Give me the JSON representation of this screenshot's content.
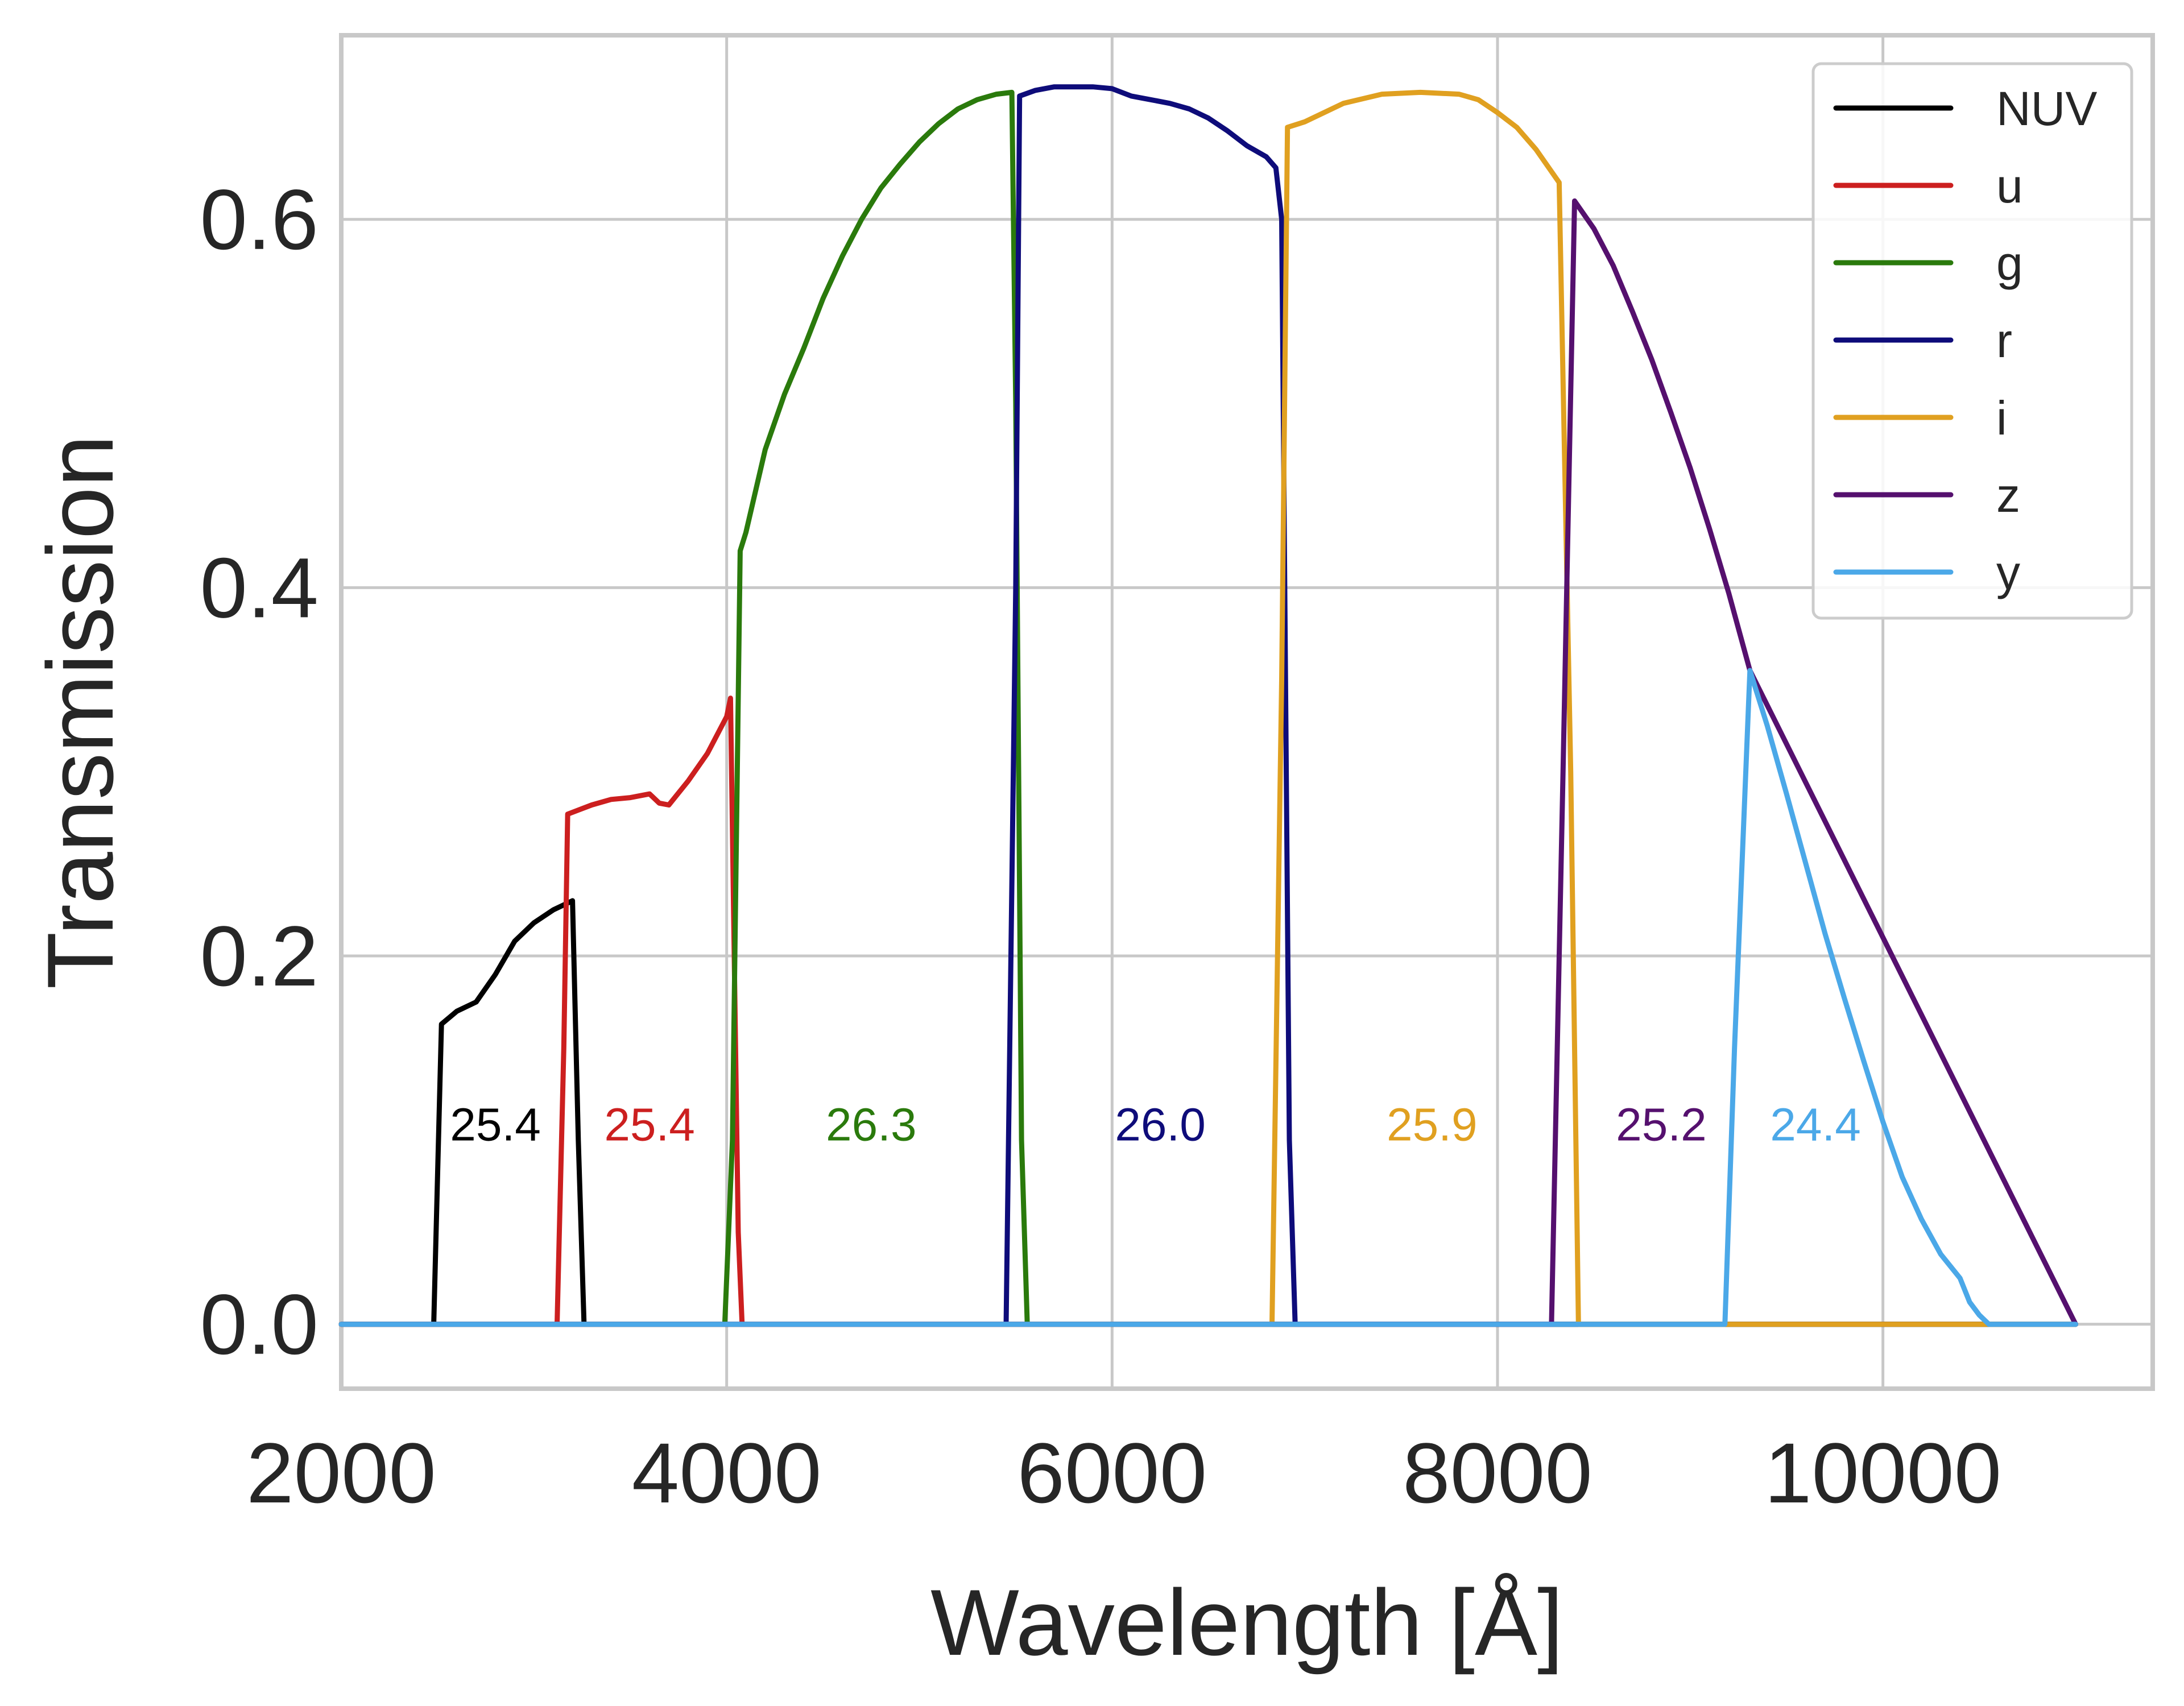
{
  "chart_data": {
    "type": "line",
    "title": "",
    "xlabel": "Wavelength [Å]",
    "ylabel": "Transmission",
    "xlim": [
      2000,
      11400
    ],
    "ylim": [
      -0.035,
      0.7
    ],
    "xticks": [
      2000,
      4000,
      6000,
      8000,
      10000
    ],
    "yticks": [
      0.0,
      0.2,
      0.4,
      0.6
    ],
    "xtick_labels": [
      "2000",
      "4000",
      "6000",
      "8000",
      "10000"
    ],
    "ytick_labels": [
      "0.0",
      "0.2",
      "0.4",
      "0.6"
    ],
    "grid": true,
    "legend_position": "top-right",
    "series": [
      {
        "name": "NUV",
        "color": "#000000",
        "x": [
          2000,
          2450,
          2480,
          2520,
          2600,
          2700,
          2800,
          2900,
          3000,
          3100,
          3200,
          3230,
          3260,
          11000
        ],
        "y": [
          0,
          0,
          0,
          0.163,
          0.17,
          0.175,
          0.19,
          0.208,
          0.218,
          0.225,
          0.23,
          0.1,
          0,
          0
        ]
      },
      {
        "name": "u",
        "color": "#cc1f1f",
        "x": [
          2000,
          3120,
          3155,
          3175,
          3300,
          3400,
          3500,
          3600,
          3650,
          3700,
          3800,
          3900,
          4000,
          4020,
          4060,
          4080,
          11000
        ],
        "y": [
          0,
          0,
          0.15,
          0.277,
          0.282,
          0.285,
          0.286,
          0.288,
          0.283,
          0.282,
          0.295,
          0.31,
          0.33,
          0.34,
          0.05,
          0,
          0
        ]
      },
      {
        "name": "g",
        "color": "#2a7a0c",
        "x": [
          2000,
          3990,
          4030,
          4070,
          4100,
          4200,
          4300,
          4400,
          4500,
          4600,
          4700,
          4800,
          4900,
          5000,
          5100,
          5200,
          5300,
          5400,
          5480,
          5500,
          5530,
          5560,
          11000
        ],
        "y": [
          0,
          0,
          0.1,
          0.42,
          0.43,
          0.475,
          0.505,
          0.53,
          0.557,
          0.58,
          0.6,
          0.617,
          0.63,
          0.642,
          0.652,
          0.66,
          0.665,
          0.668,
          0.669,
          0.5,
          0.1,
          0,
          0
        ]
      },
      {
        "name": "r",
        "color": "#0e0c7a",
        "x": [
          2000,
          5450,
          5500,
          5520,
          5600,
          5700,
          5800,
          5900,
          6000,
          6100,
          6200,
          6300,
          6400,
          6500,
          6600,
          6700,
          6800,
          6850,
          6880,
          6920,
          6950,
          11000
        ],
        "y": [
          0,
          0,
          0.4,
          0.667,
          0.67,
          0.672,
          0.672,
          0.672,
          0.671,
          0.667,
          0.665,
          0.663,
          0.66,
          0.655,
          0.648,
          0.64,
          0.634,
          0.628,
          0.6,
          0.1,
          0,
          0
        ]
      },
      {
        "name": "i",
        "color": "#e0a020",
        "x": [
          2000,
          6830,
          6880,
          6910,
          7000,
          7200,
          7400,
          7600,
          7800,
          7900,
          8000,
          8100,
          8200,
          8300,
          8320,
          8380,
          8420,
          11000
        ],
        "y": [
          0,
          0,
          0.35,
          0.65,
          0.653,
          0.663,
          0.668,
          0.669,
          0.668,
          0.665,
          0.658,
          0.65,
          0.638,
          0.623,
          0.62,
          0.3,
          0,
          0
        ]
      },
      {
        "name": "z",
        "color": "#55106e",
        "x": [
          2000,
          8280,
          8340,
          8400,
          8500,
          8600,
          8700,
          8800,
          8900,
          9000,
          9100,
          9200,
          9310,
          11000
        ],
        "y": [
          0,
          0,
          0.3,
          0.61,
          0.595,
          0.575,
          0.55,
          0.524,
          0.495,
          0.465,
          0.432,
          0.397,
          0.355,
          0
        ]
      },
      {
        "name": "y",
        "color": "#4ba8e8",
        "x": [
          2000,
          9180,
          9230,
          9310,
          9400,
          9500,
          9600,
          9700,
          9800,
          9900,
          10000,
          10100,
          10200,
          10300,
          10400,
          10450,
          10500,
          10550,
          11000
        ],
        "y": [
          0,
          0,
          0.15,
          0.355,
          0.325,
          0.288,
          0.25,
          0.212,
          0.177,
          0.143,
          0.11,
          0.08,
          0.057,
          0.038,
          0.025,
          0.012,
          0.005,
          0,
          0
        ]
      }
    ],
    "annotations": [
      {
        "text": "25.4",
        "x": 2800,
        "y": 0.109,
        "color": "#000000"
      },
      {
        "text": "25.4",
        "x": 3600,
        "y": 0.109,
        "color": "#cc1f1f"
      },
      {
        "text": "26.3",
        "x": 4750,
        "y": 0.109,
        "color": "#2a7a0c"
      },
      {
        "text": "26.0",
        "x": 6250,
        "y": 0.109,
        "color": "#0e0c7a"
      },
      {
        "text": "25.9",
        "x": 7660,
        "y": 0.109,
        "color": "#e0a020"
      },
      {
        "text": "25.2",
        "x": 8850,
        "y": 0.109,
        "color": "#55106e"
      },
      {
        "text": "24.4",
        "x": 9650,
        "y": 0.109,
        "color": "#4ba8e8"
      }
    ]
  }
}
